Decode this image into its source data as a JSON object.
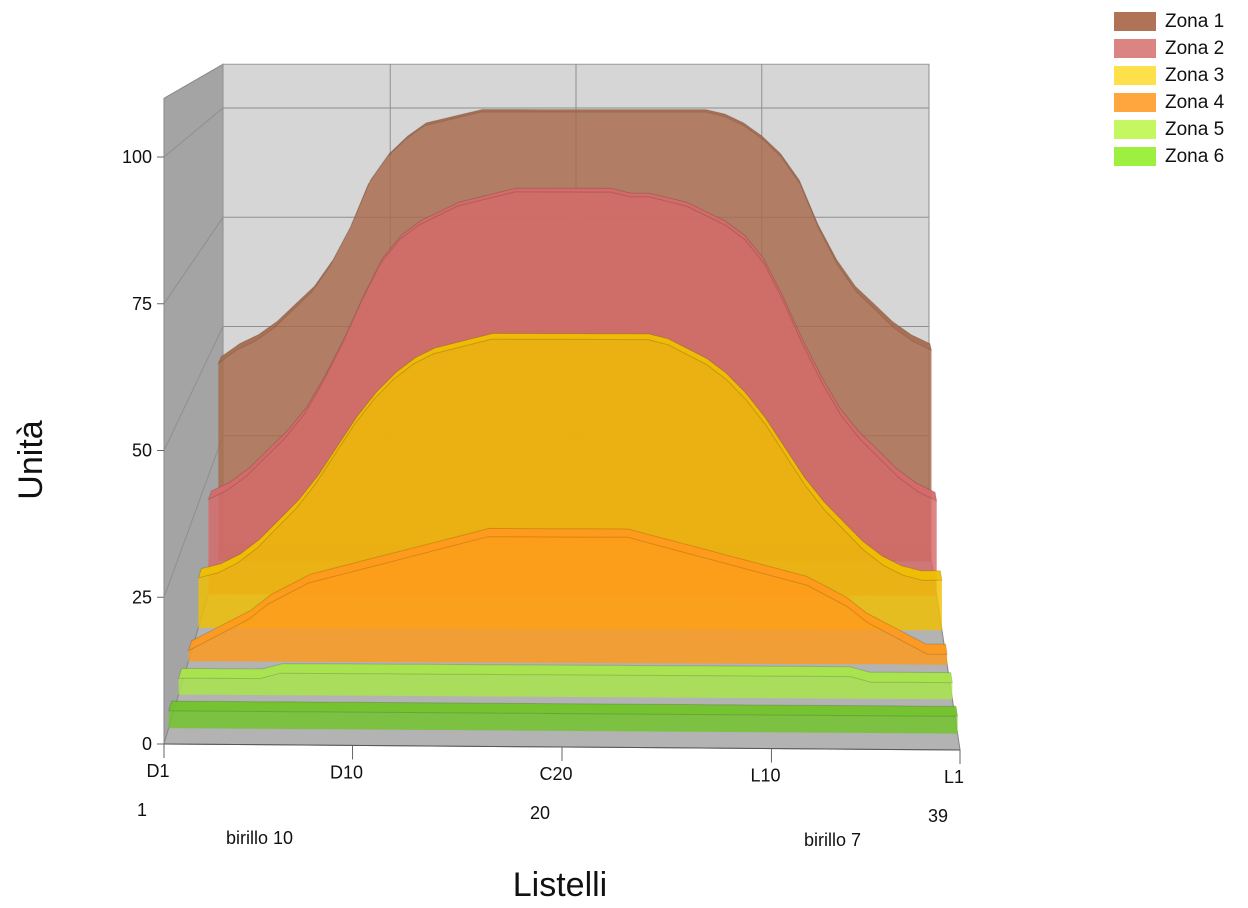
{
  "chart_data": {
    "type": "area",
    "view": "3d",
    "xlabel": "Listelli",
    "ylabel": "Unità",
    "ylim": [
      0,
      100
    ],
    "yticks": [
      0,
      25,
      50,
      75,
      100
    ],
    "x": [
      1,
      2,
      3,
      4,
      5,
      6,
      7,
      8,
      9,
      10,
      11,
      12,
      13,
      14,
      15,
      16,
      17,
      18,
      19,
      20,
      21,
      22,
      23,
      24,
      25,
      26,
      27,
      28,
      29,
      30,
      31,
      32,
      33,
      34,
      35,
      36,
      37,
      38,
      39
    ],
    "xticks": [
      {
        "x": 1,
        "label": "D1"
      },
      {
        "x": 10,
        "label": "D10"
      },
      {
        "x": 20,
        "label": "C20"
      },
      {
        "x": 30,
        "label": "L10"
      },
      {
        "x": 39,
        "label": "L1"
      }
    ],
    "xnumbers": [
      {
        "x": 1,
        "label": "1"
      },
      {
        "x": 20,
        "label": "20"
      },
      {
        "x": 39,
        "label": "39"
      }
    ],
    "notes": [
      {
        "x": 6,
        "label": "birillo 10"
      },
      {
        "x": 34,
        "label": "birillo 7"
      }
    ],
    "grid": true,
    "legend_position": "top-right",
    "series": [
      {
        "name": "Zona 1",
        "color": "#a86a4c",
        "values": [
          44,
          47,
          49,
          52,
          56,
          60,
          66,
          74,
          84,
          90,
          94,
          97,
          98,
          99,
          100,
          100,
          100,
          100,
          100,
          100,
          100,
          100,
          100,
          100,
          100,
          100,
          100,
          99,
          97,
          94,
          90,
          84,
          74,
          66,
          60,
          56,
          52,
          49,
          47
        ]
      },
      {
        "name": "Zona 2",
        "color": "#d66a6a",
        "values": [
          20,
          22,
          25,
          29,
          33,
          38,
          45,
          53,
          62,
          70,
          75,
          78,
          80,
          82,
          83,
          84,
          85,
          85,
          85,
          85,
          85,
          85,
          84,
          84,
          83,
          82,
          80,
          78,
          75,
          70,
          62,
          53,
          45,
          38,
          33,
          29,
          25,
          22,
          20
        ]
      },
      {
        "name": "Zona 3",
        "color": "#f0c000",
        "values": [
          10,
          11,
          13,
          16,
          20,
          24,
          29,
          35,
          41,
          46,
          50,
          53,
          55,
          56,
          57,
          58,
          58,
          58,
          58,
          58,
          58,
          58,
          58,
          58,
          57,
          55,
          53,
          50,
          46,
          41,
          35,
          29,
          24,
          20,
          16,
          13,
          11,
          10,
          10
        ]
      },
      {
        "name": "Zona 4",
        "color": "#ff9a1c",
        "values": [
          2,
          4,
          6,
          8,
          11,
          13,
          15,
          16,
          17,
          18,
          19,
          20,
          21,
          22,
          23,
          24,
          24,
          24,
          24,
          24,
          24,
          24,
          24,
          23,
          22,
          21,
          20,
          19,
          18,
          17,
          16,
          15,
          13,
          11,
          8,
          6,
          4,
          2,
          2
        ]
      },
      {
        "name": "Zona 5",
        "color": "#a9e64a",
        "values": [
          3,
          3,
          3,
          3,
          3,
          4,
          4,
          4,
          4,
          4,
          4,
          4,
          4,
          4,
          4,
          4,
          4,
          4,
          4,
          4,
          4,
          4,
          4,
          4,
          4,
          4,
          4,
          4,
          4,
          4,
          4,
          4,
          4,
          4,
          3,
          3,
          3,
          3,
          3
        ]
      },
      {
        "name": "Zona 6",
        "color": "#72c42a",
        "values": [
          3,
          3,
          3,
          3,
          3,
          3,
          3,
          3,
          3,
          3,
          3,
          3,
          3,
          3,
          3,
          3,
          3,
          3,
          3,
          3,
          3,
          3,
          3,
          3,
          3,
          3,
          3,
          3,
          3,
          3,
          3,
          3,
          3,
          3,
          3,
          3,
          3,
          3,
          3
        ]
      }
    ]
  },
  "legend": [
    {
      "label": "Zona 1",
      "color": "#b07358"
    },
    {
      "label": "Zona 2",
      "color": "#da8484"
    },
    {
      "label": "Zona 3",
      "color": "#fde04a"
    },
    {
      "label": "Zona 4",
      "color": "#ffa63e"
    },
    {
      "label": "Zona 5",
      "color": "#c5f860"
    },
    {
      "label": "Zona 6",
      "color": "#9ef040"
    }
  ]
}
